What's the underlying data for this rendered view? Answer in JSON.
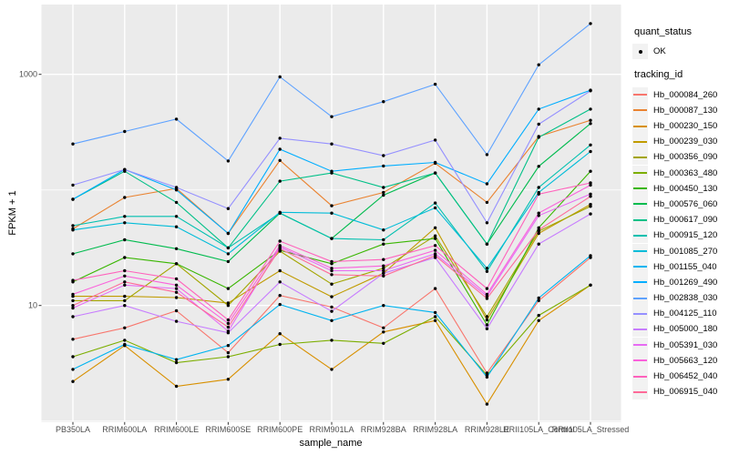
{
  "figure": {
    "y_axis_title": "FPKM + 1",
    "x_axis_title": "sample_name",
    "panel_bg": "#EBEBEB",
    "grid_color": "#FFFFFF",
    "tick_color": "#333333",
    "tick_text_color": "#4D4D4D",
    "point_color": "#000000",
    "y_ticks": [
      {
        "label": "1000",
        "value": 1000
      },
      {
        "label": "10",
        "value": 10
      }
    ],
    "y_minor_gridlines": [
      1,
      100
    ],
    "y_major_gridlines": [
      10,
      1000
    ]
  },
  "legend": {
    "quant_status_title": "quant_status",
    "ok_label": "OK",
    "tracking_id_title": "tracking_id"
  },
  "chart_data": {
    "type": "line",
    "title": "",
    "xlabel": "sample_name",
    "ylabel": "FPKM + 1",
    "y_scale": "log10",
    "ylim": [
      1,
      3000
    ],
    "grid": true,
    "legend_position": "right",
    "x_categories": [
      "PB350LA",
      "RRIM600LA",
      "RRIM600LE",
      "RRIM600SE",
      "RRIM600PE",
      "RRIM901LA",
      "RRIM928BA",
      "RRIM928LA",
      "RRIM928LE",
      "RRII105LA_Control",
      "RRII105LA_Stressed"
    ],
    "series": [
      {
        "name": "Hb_000084_260",
        "color": "#F8766D",
        "values": [
          5.1,
          6.4,
          9,
          3.9,
          12.2,
          9.7,
          6.4,
          14,
          2.6,
          11,
          26
        ]
      },
      {
        "name": "Hb_000087_130",
        "color": "#EA8331",
        "values": [
          46,
          86,
          103,
          42,
          180,
          73,
          95,
          170,
          78,
          290,
          400
        ]
      },
      {
        "name": "Hb_000230_150",
        "color": "#D89000",
        "values": [
          2.2,
          4.5,
          2.0,
          2.3,
          5.7,
          2.8,
          5.9,
          7.4,
          1.4,
          7.4,
          15
        ]
      },
      {
        "name": "Hb_000239_030",
        "color": "#C09B00",
        "values": [
          12,
          12,
          11.7,
          10.5,
          20,
          11.9,
          19,
          47,
          7.5,
          42,
          75
        ]
      },
      {
        "name": "Hb_000356_090",
        "color": "#A3A500",
        "values": [
          11,
          11,
          23,
          10,
          29.5,
          15.3,
          21,
          40,
          8,
          44,
          72
        ]
      },
      {
        "name": "Hb_000363_480",
        "color": "#7CAE00",
        "values": [
          3.6,
          5.0,
          3.2,
          3.6,
          4.6,
          5.0,
          4.7,
          8.0,
          2.5,
          8.2,
          15
        ]
      },
      {
        "name": "Hb_000450_130",
        "color": "#39B600",
        "values": [
          16,
          26,
          23,
          14,
          30,
          23,
          34,
          38,
          6.8,
          47,
          145
        ]
      },
      {
        "name": "Hb_000576_060",
        "color": "#00BB4E",
        "values": [
          28,
          37,
          31,
          24,
          63,
          38,
          90,
          140,
          34,
          160,
          375
        ]
      },
      {
        "name": "Hb_000617_090",
        "color": "#00C087",
        "values": [
          83,
          145,
          78,
          31.5,
          119,
          140,
          105,
          140,
          34,
          285,
          500
        ]
      },
      {
        "name": "Hb_000915_120",
        "color": "#00C0AF",
        "values": [
          49,
          59,
          59,
          31.5,
          63,
          38,
          37,
          77,
          19.7,
          105,
          245
        ]
      },
      {
        "name": "Hb_001085_270",
        "color": "#00BCD8",
        "values": [
          45,
          52,
          48,
          28,
          64,
          63,
          45,
          70,
          21,
          95,
          215
        ]
      },
      {
        "name": "Hb_001155_040",
        "color": "#00B4F0",
        "values": [
          2.8,
          4.6,
          3.4,
          4.5,
          10.2,
          7.4,
          10,
          8.7,
          2.4,
          11.6,
          27
        ]
      },
      {
        "name": "Hb_001269_490",
        "color": "#00AEFF",
        "values": [
          83,
          150,
          100,
          42,
          225,
          145,
          161,
          173,
          113,
          500,
          730
        ]
      },
      {
        "name": "Hb_002838_030",
        "color": "#5EA2FF",
        "values": [
          250,
          320,
          410,
          178,
          950,
          430,
          580,
          820,
          202,
          1210,
          2750
        ]
      },
      {
        "name": "Hb_004125_110",
        "color": "#9590FF",
        "values": [
          110,
          150,
          105,
          69,
          280,
          250,
          198,
          270,
          52,
          370,
          720
        ]
      },
      {
        "name": "Hb_005000_180",
        "color": "#C77CFF",
        "values": [
          8.0,
          10,
          7.3,
          5.8,
          16,
          8.9,
          19,
          26,
          6.3,
          34,
          62
        ]
      },
      {
        "name": "Hb_005391_030",
        "color": "#E76BF3",
        "values": [
          9.5,
          15,
          14,
          6.0,
          32,
          20,
          20,
          28,
          12,
          60,
          92
        ]
      },
      {
        "name": "Hb_005663_120",
        "color": "#FA62DB",
        "values": [
          12.5,
          18,
          15,
          7.0,
          33,
          21,
          22,
          30,
          12.5,
          63,
          110
        ]
      },
      {
        "name": "Hb_006452_040",
        "color": "#FF62BC",
        "values": [
          16.5,
          20,
          17,
          7.5,
          36,
          24,
          25,
          33,
          14,
          92,
          115
        ]
      },
      {
        "name": "Hb_006915_040",
        "color": "#FF6A98",
        "values": [
          10,
          16,
          13,
          6.5,
          31,
          18.5,
          18,
          27,
          11.5,
          45,
          88
        ]
      }
    ]
  }
}
